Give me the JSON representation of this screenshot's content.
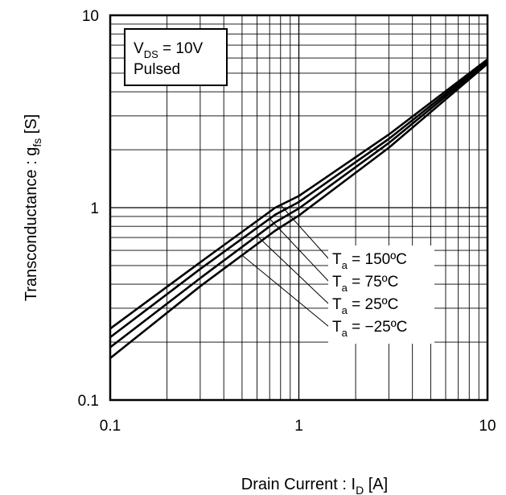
{
  "chart_data": {
    "type": "line",
    "title": "",
    "xlabel": {
      "main": "Drain Current : I",
      "sub": "D",
      "unit": " [A]"
    },
    "ylabel": {
      "main": "Transconductance : g",
      "sub": "fs",
      "unit": " [S]"
    },
    "x_scale": "log",
    "y_scale": "log",
    "xlim": [
      0.1,
      10
    ],
    "ylim": [
      0.1,
      10
    ],
    "grid": true,
    "x_ticks": [
      {
        "value": 0.1,
        "label": "0.1"
      },
      {
        "value": 1,
        "label": "1"
      },
      {
        "value": 10,
        "label": "10"
      }
    ],
    "y_ticks": [
      {
        "value": 0.1,
        "label": "0.1"
      },
      {
        "value": 1,
        "label": "1"
      },
      {
        "value": 10,
        "label": "10"
      }
    ],
    "conditions": {
      "line1": {
        "main": "V",
        "sub": "DS",
        "rest": " = 10V"
      },
      "line2": "Pulsed"
    },
    "legend_placement": "center-right",
    "series": [
      {
        "label": {
          "main": "T",
          "sub": "a",
          "rest": " = 150ºC"
        },
        "x": [
          0.1,
          0.3,
          0.75,
          1,
          3,
          10
        ],
        "y": [
          0.235,
          0.52,
          1.0,
          1.15,
          2.4,
          5.9
        ]
      },
      {
        "label": {
          "main": "T",
          "sub": "a",
          "rest": " = 75ºC"
        },
        "x": [
          0.1,
          0.3,
          0.75,
          1,
          3,
          10
        ],
        "y": [
          0.212,
          0.48,
          0.92,
          1.07,
          2.28,
          5.8
        ]
      },
      {
        "label": {
          "main": "T",
          "sub": "a",
          "rest": " = 25ºC"
        },
        "x": [
          0.1,
          0.3,
          0.75,
          1,
          3,
          10
        ],
        "y": [
          0.188,
          0.43,
          0.84,
          0.99,
          2.17,
          5.7
        ]
      },
      {
        "label": {
          "main": "T",
          "sub": "a",
          "rest": " = −25ºC"
        },
        "x": [
          0.1,
          0.3,
          0.75,
          1,
          3,
          10
        ],
        "y": [
          0.165,
          0.39,
          0.76,
          0.91,
          2.05,
          5.6
        ]
      }
    ]
  }
}
